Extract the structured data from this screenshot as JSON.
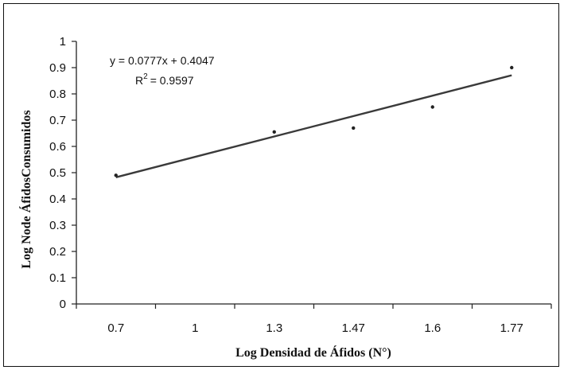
{
  "chart_data": {
    "type": "scatter",
    "categories": [
      "0.7",
      "1",
      "1.3",
      "1.47",
      "1.6",
      "1.77"
    ],
    "points": [
      {
        "x": "0.7",
        "y": 0.49
      },
      {
        "x": "1.3",
        "y": 0.655
      },
      {
        "x": "1.47",
        "y": 0.67
      },
      {
        "x": "1.6",
        "y": 0.75
      },
      {
        "x": "1.77",
        "y": 0.9
      }
    ],
    "trendline": {
      "type": "linear",
      "slope": 0.0777,
      "intercept": 0.4047,
      "equation": "y = 0.0777x + 0.4047",
      "r2_label": "R",
      "r2_value": "= 0.9597"
    },
    "xlabel": "Log Densidad de Áfidos (N°)",
    "ylabel": "Log Node ÁfidosConsumidos",
    "ylim": [
      0,
      1
    ],
    "yticks": [
      "0",
      "0.1",
      "0.2",
      "0.3",
      "0.4",
      "0.5",
      "0.6",
      "0.7",
      "0.8",
      "0.9",
      "1"
    ],
    "grid": false,
    "colors": {
      "line": "#3a3a3a",
      "point": "#222222",
      "axis": "#222222"
    }
  }
}
